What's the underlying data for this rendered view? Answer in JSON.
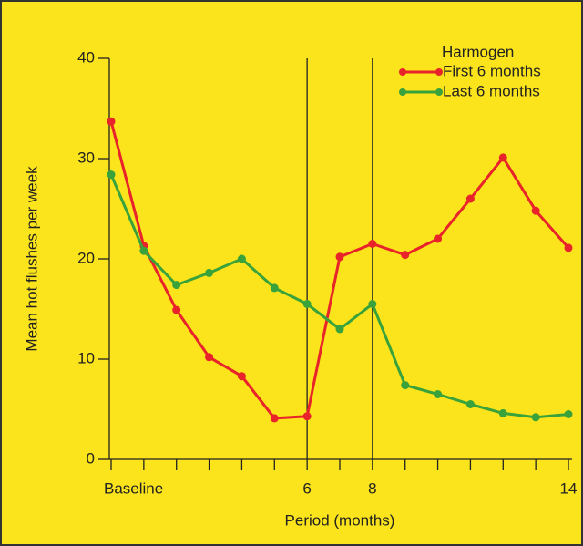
{
  "chart_data": {
    "type": "line",
    "xlabel": "Period (months)",
    "ylabel": "Mean hot flushes per week",
    "legend_title": "Harmogen",
    "legend": "upper right",
    "xlim": [
      0,
      14
    ],
    "ylim": [
      0,
      40
    ],
    "xticks": [
      {
        "value": 0,
        "label": "Baseline"
      },
      6,
      8,
      14
    ],
    "xminorticks": [
      1,
      2,
      3,
      4,
      5,
      7,
      9,
      10,
      11,
      12,
      13
    ],
    "yticks": [
      0,
      10,
      20,
      30,
      40
    ],
    "vlines": [
      6,
      8
    ],
    "grid": false,
    "x": [
      0,
      1,
      2,
      3,
      4,
      5,
      6,
      7,
      8,
      9,
      10,
      11,
      12,
      13,
      14
    ],
    "series": [
      {
        "name": "First 6 months",
        "color": "#e8232a",
        "values": [
          33.7,
          21.3,
          14.9,
          10.2,
          8.3,
          4.1,
          4.3,
          20.2,
          21.5,
          20.4,
          22.0,
          26.0,
          30.1,
          24.8,
          21.1
        ]
      },
      {
        "name": "Last 6 months",
        "color": "#3aa23a",
        "values": [
          28.4,
          20.8,
          17.4,
          18.6,
          20.0,
          17.1,
          15.5,
          13.0,
          15.5,
          7.4,
          6.5,
          5.5,
          4.6,
          4.2,
          4.5
        ]
      }
    ]
  }
}
